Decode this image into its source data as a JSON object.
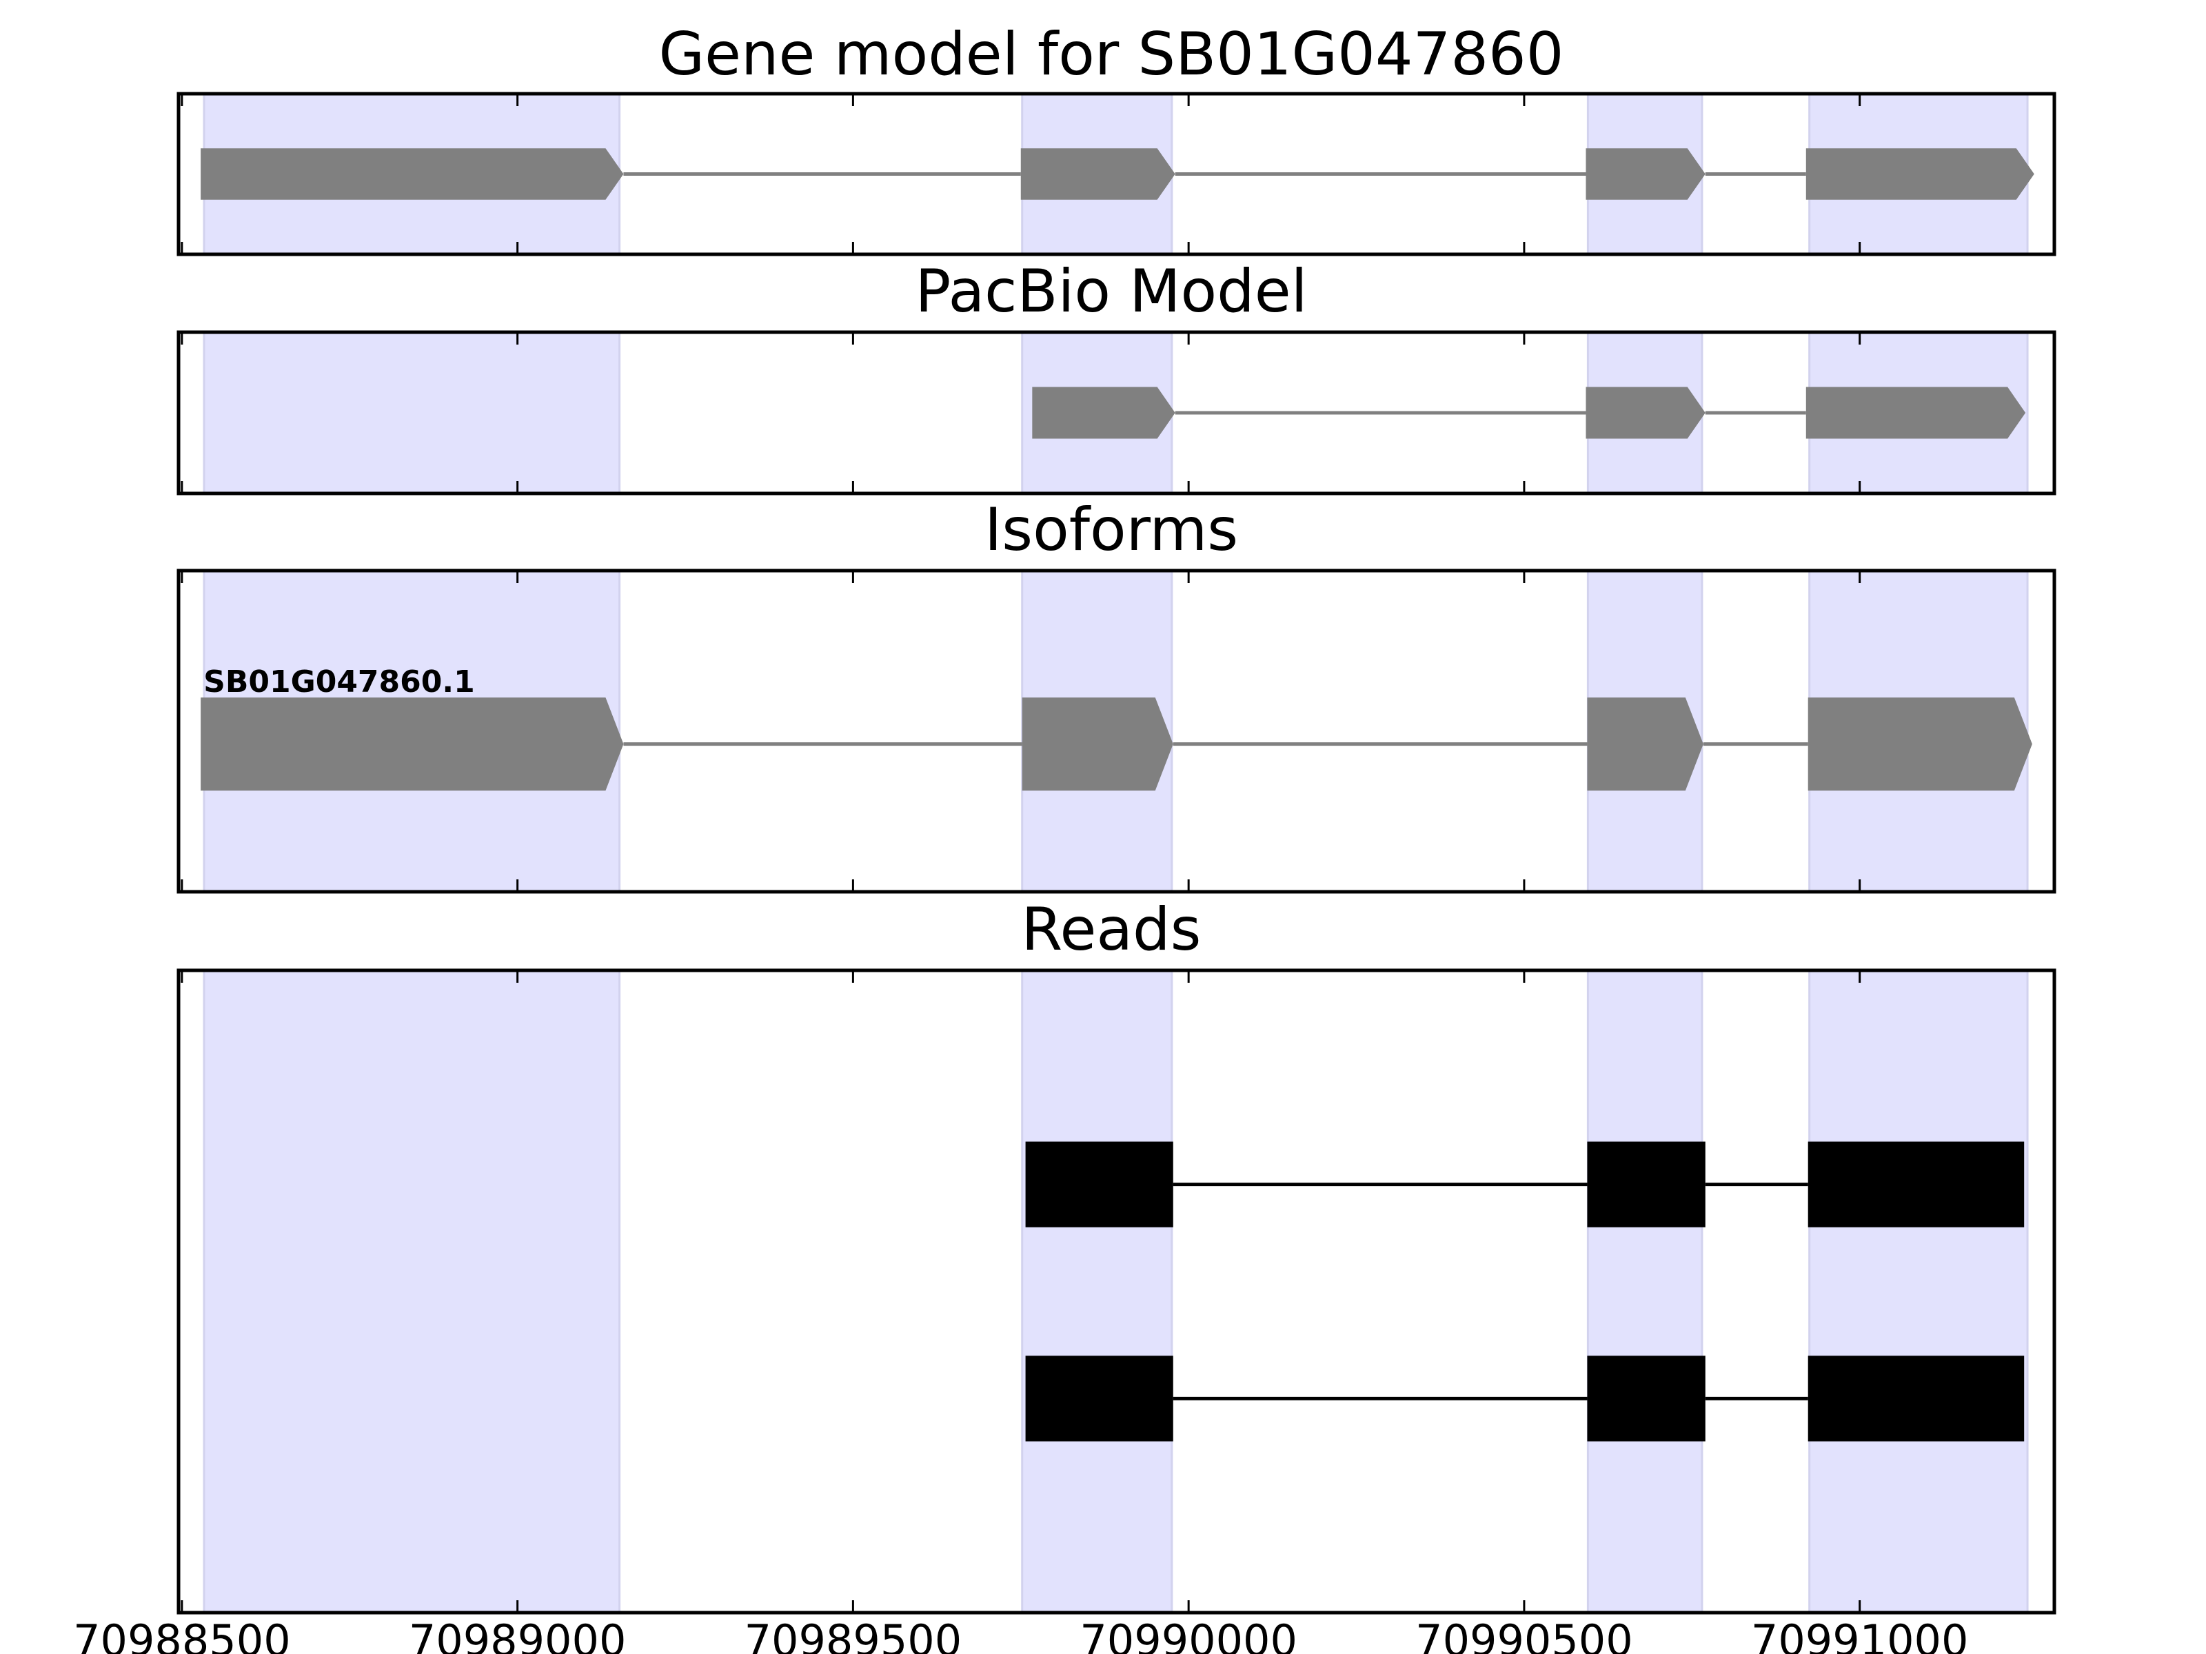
{
  "chart_data": {
    "type": "gene-model",
    "xlim": [
      70988495,
      70991290
    ],
    "xticks": [
      70988500,
      70989000,
      70989500,
      70990000,
      70990500,
      70991000
    ],
    "xtick_labels": [
      "70988500",
      "70989000",
      "70989500",
      "70990000",
      "70990500",
      "70991000"
    ],
    "colors": {
      "exon_highlight": "#e2e2fd",
      "exon_highlight_edge": "#d2d2ee",
      "feature_fill": "#808080",
      "intron_line": "#808080",
      "read_fill": "#000000",
      "read_line": "#000000",
      "axes_edge": "#000000"
    },
    "exon_highlights": [
      {
        "start": 70988533,
        "end": 70989152
      },
      {
        "start": 70989752,
        "end": 70989975
      },
      {
        "start": 70990595,
        "end": 70990765
      },
      {
        "start": 70990925,
        "end": 70991250
      }
    ],
    "panels": [
      {
        "title": "Gene model for SB01G047860",
        "ylim": [
          0,
          1
        ],
        "features": [
          {
            "strand": "+",
            "y": 0.5,
            "height": 0.32,
            "exons": [
              [
                70988528,
                70989158
              ],
              [
                70989750,
                70989980
              ],
              [
                70990592,
                70990770
              ],
              [
                70990920,
                70991260
              ]
            ]
          }
        ]
      },
      {
        "title": "PacBio Model",
        "ylim": [
          0,
          1
        ],
        "features": [
          {
            "strand": "+",
            "y": 0.5,
            "height": 0.32,
            "exons": [
              [
                70989767,
                70989980
              ],
              [
                70990592,
                70990770
              ],
              [
                70990920,
                70991247
              ]
            ]
          }
        ]
      },
      {
        "title": "Isoforms",
        "ylim": [
          0,
          1
        ],
        "features": [
          {
            "label": "SB01G047860.1",
            "strand": "+",
            "y": 0.46,
            "height": 0.29,
            "exons": [
              [
                70988528,
                70989158
              ],
              [
                70989752,
                70989977
              ],
              [
                70990594,
                70990767
              ],
              [
                70990923,
                70991257
              ]
            ]
          }
        ]
      },
      {
        "title": "Reads",
        "ylim": [
          0,
          3
        ],
        "reads": [
          {
            "y": 2.0,
            "height": 0.4,
            "exons": [
              [
                70989757,
                70989977
              ],
              [
                70990594,
                70990770
              ],
              [
                70990923,
                70991245
              ]
            ]
          },
          {
            "y": 1.0,
            "height": 0.4,
            "exons": [
              [
                70989757,
                70989977
              ],
              [
                70990594,
                70990770
              ],
              [
                70990923,
                70991245
              ]
            ]
          }
        ]
      }
    ]
  }
}
